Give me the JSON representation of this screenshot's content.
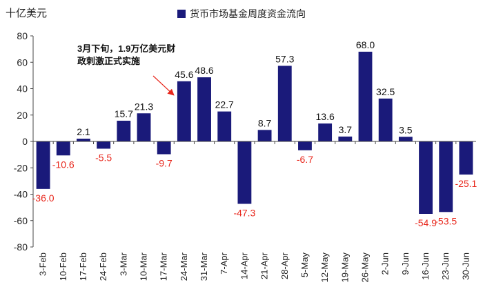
{
  "chart_data": {
    "type": "bar",
    "title": "货币市场基金周度资金流向",
    "ylabel": "十亿美元",
    "xlabel": "",
    "ylim": [
      -80,
      80
    ],
    "yticks": [
      -80,
      -60,
      -40,
      -20,
      0,
      20,
      40,
      60,
      80
    ],
    "categories": [
      "3-Feb",
      "10-Feb",
      "17-Feb",
      "24-Feb",
      "3-Mar",
      "10-Mar",
      "17-Mar",
      "24-Mar",
      "31-Mar",
      "7-Apr",
      "14-Apr",
      "21-Apr",
      "28-Apr",
      "5-May",
      "12-May",
      "19-May",
      "26-May",
      "2-Jun",
      "9-Jun",
      "16-Jun",
      "23-Jun",
      "30-Jun"
    ],
    "series": [
      {
        "name": "货币市场基金周度资金流向",
        "values": [
          -36.0,
          -10.6,
          2.1,
          -5.5,
          15.7,
          21.3,
          -9.7,
          45.6,
          48.6,
          22.7,
          -47.3,
          8.7,
          57.3,
          -6.7,
          13.6,
          3.7,
          68.0,
          32.5,
          3.5,
          -54.9,
          -53.5,
          -25.1
        ]
      }
    ],
    "data_labels": [
      "-36.0",
      "-10.6",
      "2.1",
      "-5.5",
      "15.7",
      "21.3",
      "-9.7",
      "45.6",
      "48.6",
      "22.7",
      "-47.3",
      "8.7",
      "57.3",
      "-6.7",
      "13.6",
      "3.7",
      "68.0",
      "32.5",
      "3.5",
      "-54.9",
      "-53.5",
      "-25.1"
    ],
    "annotation": "3月下旬，1.9万亿美元财政刺激正式实施",
    "colors": {
      "bar": "#1a1a7a",
      "negative_label": "#e8271c",
      "positive_label": "#111111",
      "arrow": "#e8271c"
    }
  }
}
